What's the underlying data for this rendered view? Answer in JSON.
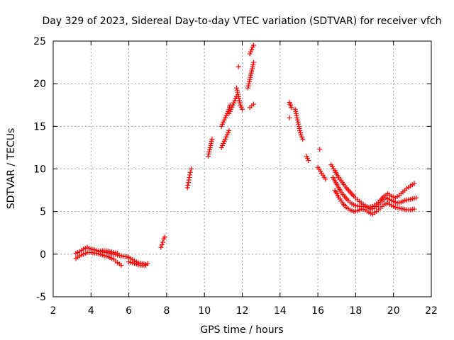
{
  "chart_data": {
    "type": "scatter",
    "title": "Day 329 of 2023, Sidereal Day-to-day VTEC variation (SDTVAR) for receiver vfch",
    "xlabel": "GPS time / hours",
    "ylabel": "SDTVAR / TECUs",
    "xlim": [
      2,
      22
    ],
    "ylim": [
      -5,
      25
    ],
    "xticks": [
      2,
      4,
      6,
      8,
      10,
      12,
      14,
      16,
      18,
      20,
      22
    ],
    "yticks": [
      -5,
      0,
      5,
      10,
      15,
      20,
      25
    ],
    "xtick_labels": [
      "2",
      "4",
      "6",
      "8",
      "10",
      "12",
      "14",
      "16",
      "18",
      "20",
      "22"
    ],
    "ytick_labels": [
      "-5",
      "0",
      "5",
      "10",
      "15",
      "20",
      "25"
    ],
    "grid": true,
    "marker": "+",
    "color": "#ff0000",
    "series": [
      {
        "name": "seg-a1",
        "x": [
          3.2,
          3.4,
          3.6,
          3.8,
          4.0,
          4.2,
          4.5,
          4.8,
          5.0,
          5.2,
          5.4,
          5.6,
          5.8
        ],
        "y": [
          0.1,
          0.3,
          0.6,
          0.8,
          0.6,
          0.5,
          0.3,
          0.2,
          0.1,
          0.0,
          -0.1,
          -0.2,
          -0.3
        ]
      },
      {
        "name": "seg-a2",
        "x": [
          3.2,
          3.4,
          3.6,
          3.8,
          4.0,
          4.3,
          4.6,
          4.9,
          5.2,
          5.4,
          5.6
        ],
        "y": [
          -0.5,
          -0.2,
          0.0,
          0.2,
          0.2,
          0.1,
          -0.1,
          -0.3,
          -0.6,
          -1.0,
          -1.3
        ]
      },
      {
        "name": "seg-a3",
        "x": [
          4.4,
          4.6,
          4.8,
          5.0,
          5.2,
          5.4
        ],
        "y": [
          0.3,
          0.4,
          0.4,
          0.3,
          0.2,
          0.1
        ]
      },
      {
        "name": "seg-b",
        "x": [
          5.9,
          6.1,
          6.3,
          6.5,
          6.7,
          6.9,
          7.0
        ],
        "y": [
          -0.3,
          -0.5,
          -0.8,
          -1.0,
          -1.1,
          -1.2,
          -1.1
        ]
      },
      {
        "name": "seg-b2",
        "x": [
          6.0,
          6.3,
          6.6,
          6.9
        ],
        "y": [
          -0.9,
          -1.1,
          -1.3,
          -1.3
        ]
      },
      {
        "name": "seg-c",
        "x": [
          7.7,
          7.75,
          7.8,
          7.85,
          7.9
        ],
        "y": [
          0.8,
          1.1,
          1.4,
          1.8,
          2.0
        ]
      },
      {
        "name": "seg-d",
        "x": [
          9.1,
          9.15,
          9.2,
          9.25,
          9.3
        ],
        "y": [
          7.8,
          8.4,
          9.0,
          9.6,
          10.0
        ]
      },
      {
        "name": "seg-e",
        "x": [
          10.2,
          10.25,
          10.3,
          10.35,
          10.4
        ],
        "y": [
          11.5,
          12.0,
          12.5,
          13.0,
          13.5
        ]
      },
      {
        "name": "seg-f1",
        "x": [
          10.9,
          11.0,
          11.1,
          11.2,
          11.3
        ],
        "y": [
          12.5,
          13.0,
          13.5,
          14.0,
          14.5
        ]
      },
      {
        "name": "seg-f2",
        "x": [
          10.9,
          11.0,
          11.1,
          11.2,
          11.3,
          11.35
        ],
        "y": [
          15.0,
          15.5,
          16.0,
          16.5,
          17.0,
          17.5
        ]
      },
      {
        "name": "seg-f3",
        "x": [
          11.3,
          11.4,
          11.5,
          11.6,
          11.7
        ],
        "y": [
          16.5,
          17.0,
          17.5,
          18.0,
          18.5
        ]
      },
      {
        "name": "seg-f4",
        "x": [
          11.7,
          11.8,
          11.9,
          12.0
        ],
        "y": [
          19.5,
          18.5,
          17.5,
          17.0
        ]
      },
      {
        "name": "seg-g1",
        "x": [
          11.8
        ],
        "y": [
          22.0
        ]
      },
      {
        "name": "seg-g2",
        "x": [
          12.3,
          12.4,
          12.5,
          12.6
        ],
        "y": [
          19.5,
          20.5,
          21.5,
          22.5
        ]
      },
      {
        "name": "seg-g3",
        "x": [
          12.4,
          12.5,
          12.55,
          12.6
        ],
        "y": [
          23.5,
          24.0,
          24.3,
          24.5
        ]
      },
      {
        "name": "seg-g4",
        "x": [
          12.4,
          12.5,
          12.6
        ],
        "y": [
          17.2,
          17.4,
          17.6
        ]
      },
      {
        "name": "seg-h1",
        "x": [
          14.5,
          14.6
        ],
        "y": [
          17.8,
          17.2
        ]
      },
      {
        "name": "seg-h2",
        "x": [
          14.5
        ],
        "y": [
          16.0
        ]
      },
      {
        "name": "seg-h3",
        "x": [
          14.8,
          14.9,
          15.0,
          15.1,
          15.2
        ],
        "y": [
          17.0,
          16.0,
          15.0,
          14.0,
          13.5
        ]
      },
      {
        "name": "seg-h4",
        "x": [
          15.4,
          15.5
        ],
        "y": [
          11.5,
          11.0
        ]
      },
      {
        "name": "seg-h5",
        "x": [
          16.1
        ],
        "y": [
          12.3
        ]
      },
      {
        "name": "seg-i1",
        "x": [
          16.0,
          16.2,
          16.4
        ],
        "y": [
          10.2,
          9.5,
          8.8
        ]
      },
      {
        "name": "seg-i2",
        "x": [
          16.7,
          16.9,
          17.1,
          17.3,
          17.5,
          17.7,
          17.9,
          18.1,
          18.3,
          18.5,
          18.7,
          18.9,
          19.1,
          19.3,
          19.5,
          19.7,
          19.9,
          20.1,
          20.3,
          20.5,
          20.7,
          20.9,
          21.1
        ],
        "y": [
          10.5,
          9.8,
          9.0,
          8.4,
          7.8,
          7.3,
          6.8,
          6.4,
          6.0,
          5.7,
          5.5,
          5.6,
          5.9,
          6.3,
          6.8,
          7.1,
          6.8,
          6.6,
          6.9,
          7.3,
          7.7,
          8.0,
          8.3
        ]
      },
      {
        "name": "seg-i3",
        "x": [
          16.8,
          17.0,
          17.2,
          17.4,
          17.6,
          17.8,
          18.0,
          18.2,
          18.4,
          18.6,
          18.8,
          19.0,
          19.2,
          19.4,
          19.6,
          19.8,
          20.0,
          20.2,
          20.4,
          20.6,
          20.8,
          21.0,
          21.2
        ],
        "y": [
          9.0,
          8.2,
          7.4,
          6.8,
          6.3,
          5.9,
          5.7,
          5.6,
          5.6,
          5.5,
          5.3,
          5.4,
          5.8,
          6.2,
          6.6,
          6.4,
          6.2,
          6.0,
          6.1,
          6.3,
          6.4,
          6.5,
          6.6
        ]
      },
      {
        "name": "seg-i4",
        "x": [
          16.9,
          17.1,
          17.3,
          17.5,
          17.7,
          17.9,
          18.1,
          18.3,
          18.5,
          18.7,
          18.9,
          19.1,
          19.3,
          19.5,
          19.7,
          19.9,
          20.1,
          20.3,
          20.5,
          20.7,
          20.9,
          21.1
        ],
        "y": [
          7.5,
          6.7,
          6.0,
          5.5,
          5.2,
          5.0,
          5.1,
          5.3,
          5.2,
          4.9,
          4.7,
          5.0,
          5.4,
          5.8,
          6.0,
          5.7,
          5.5,
          5.4,
          5.3,
          5.2,
          5.2,
          5.3
        ]
      }
    ]
  }
}
